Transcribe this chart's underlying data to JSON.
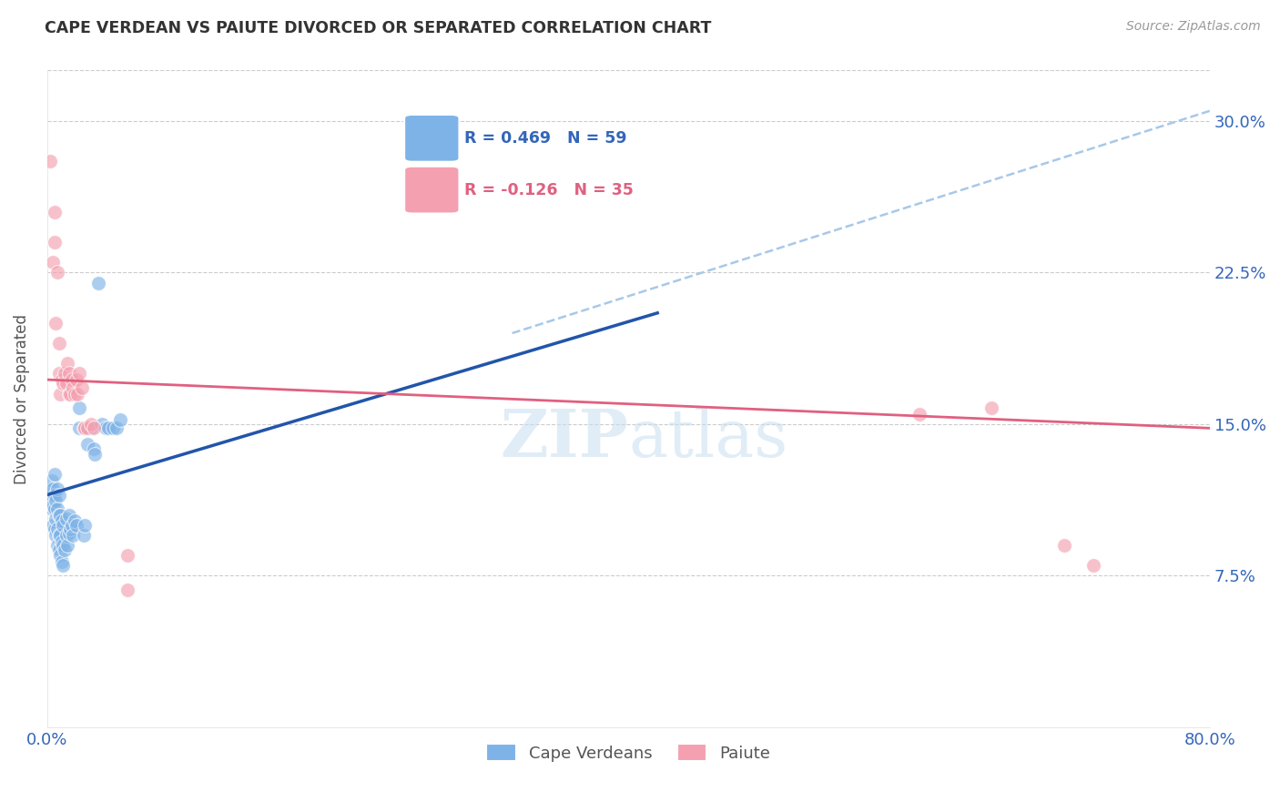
{
  "title": "CAPE VERDEAN VS PAIUTE DIVORCED OR SEPARATED CORRELATION CHART",
  "source": "Source: ZipAtlas.com",
  "ylabel": "Divorced or Separated",
  "xmin": 0.0,
  "xmax": 0.8,
  "ymin": 0.0,
  "ymax": 0.325,
  "xtick_pos": [
    0.0,
    0.1,
    0.2,
    0.3,
    0.4,
    0.5,
    0.6,
    0.7,
    0.8
  ],
  "xtick_labels": [
    "0.0%",
    "",
    "",
    "",
    "",
    "",
    "",
    "",
    "80.0%"
  ],
  "ytick_positions": [
    0.075,
    0.15,
    0.225,
    0.3
  ],
  "ytick_labels": [
    "7.5%",
    "15.0%",
    "22.5%",
    "30.0%"
  ],
  "legend_blue_label": "Cape Verdeans",
  "legend_pink_label": "Paiute",
  "R_blue": 0.469,
  "N_blue": 59,
  "R_pink": -0.126,
  "N_pink": 35,
  "blue_color": "#7EB3E8",
  "pink_color": "#F4A0B0",
  "blue_line_color": "#2255AA",
  "pink_line_color": "#E06080",
  "dashed_line_color": "#A8C8E8",
  "blue_line_x": [
    0.0,
    0.42
  ],
  "blue_line_y": [
    0.115,
    0.205
  ],
  "dashed_line_x": [
    0.32,
    0.8
  ],
  "dashed_line_y": [
    0.195,
    0.305
  ],
  "pink_line_x": [
    0.0,
    0.8
  ],
  "pink_line_y": [
    0.172,
    0.148
  ],
  "blue_points": [
    [
      0.001,
      0.115
    ],
    [
      0.002,
      0.112
    ],
    [
      0.002,
      0.118
    ],
    [
      0.003,
      0.108
    ],
    [
      0.003,
      0.115
    ],
    [
      0.003,
      0.122
    ],
    [
      0.004,
      0.1
    ],
    [
      0.004,
      0.11
    ],
    [
      0.004,
      0.118
    ],
    [
      0.005,
      0.098
    ],
    [
      0.005,
      0.108
    ],
    [
      0.005,
      0.115
    ],
    [
      0.005,
      0.125
    ],
    [
      0.006,
      0.095
    ],
    [
      0.006,
      0.103
    ],
    [
      0.006,
      0.112
    ],
    [
      0.007,
      0.09
    ],
    [
      0.007,
      0.098
    ],
    [
      0.007,
      0.108
    ],
    [
      0.007,
      0.118
    ],
    [
      0.008,
      0.088
    ],
    [
      0.008,
      0.095
    ],
    [
      0.008,
      0.105
    ],
    [
      0.008,
      0.115
    ],
    [
      0.009,
      0.085
    ],
    [
      0.009,
      0.095
    ],
    [
      0.009,
      0.105
    ],
    [
      0.01,
      0.082
    ],
    [
      0.01,
      0.092
    ],
    [
      0.01,
      0.102
    ],
    [
      0.011,
      0.08
    ],
    [
      0.011,
      0.09
    ],
    [
      0.011,
      0.1
    ],
    [
      0.012,
      0.088
    ],
    [
      0.013,
      0.095
    ],
    [
      0.013,
      0.103
    ],
    [
      0.014,
      0.09
    ],
    [
      0.015,
      0.096
    ],
    [
      0.015,
      0.105
    ],
    [
      0.016,
      0.098
    ],
    [
      0.017,
      0.1
    ],
    [
      0.018,
      0.095
    ],
    [
      0.019,
      0.102
    ],
    [
      0.02,
      0.1
    ],
    [
      0.022,
      0.148
    ],
    [
      0.022,
      0.158
    ],
    [
      0.025,
      0.095
    ],
    [
      0.026,
      0.1
    ],
    [
      0.028,
      0.14
    ],
    [
      0.03,
      0.148
    ],
    [
      0.032,
      0.138
    ],
    [
      0.033,
      0.135
    ],
    [
      0.035,
      0.22
    ],
    [
      0.038,
      0.15
    ],
    [
      0.04,
      0.148
    ],
    [
      0.042,
      0.148
    ],
    [
      0.045,
      0.148
    ],
    [
      0.048,
      0.148
    ],
    [
      0.05,
      0.152
    ]
  ],
  "pink_points": [
    [
      0.002,
      0.28
    ],
    [
      0.004,
      0.23
    ],
    [
      0.005,
      0.255
    ],
    [
      0.005,
      0.24
    ],
    [
      0.006,
      0.2
    ],
    [
      0.007,
      0.225
    ],
    [
      0.008,
      0.175
    ],
    [
      0.008,
      0.19
    ],
    [
      0.009,
      0.165
    ],
    [
      0.01,
      0.172
    ],
    [
      0.011,
      0.17
    ],
    [
      0.012,
      0.175
    ],
    [
      0.013,
      0.17
    ],
    [
      0.014,
      0.18
    ],
    [
      0.015,
      0.165
    ],
    [
      0.015,
      0.175
    ],
    [
      0.016,
      0.165
    ],
    [
      0.017,
      0.172
    ],
    [
      0.018,
      0.168
    ],
    [
      0.019,
      0.165
    ],
    [
      0.02,
      0.172
    ],
    [
      0.021,
      0.165
    ],
    [
      0.022,
      0.175
    ],
    [
      0.024,
      0.168
    ],
    [
      0.025,
      0.148
    ],
    [
      0.026,
      0.148
    ],
    [
      0.028,
      0.148
    ],
    [
      0.03,
      0.15
    ],
    [
      0.032,
      0.148
    ],
    [
      0.055,
      0.085
    ],
    [
      0.055,
      0.068
    ],
    [
      0.6,
      0.155
    ],
    [
      0.65,
      0.158
    ],
    [
      0.7,
      0.09
    ],
    [
      0.72,
      0.08
    ]
  ]
}
